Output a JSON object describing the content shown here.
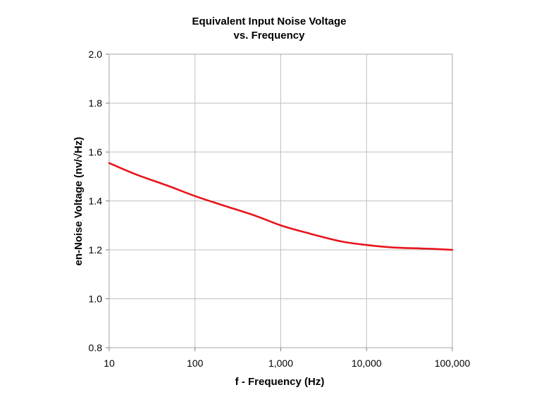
{
  "chart_data": {
    "type": "line",
    "title": "Equivalent Input Noise Voltage",
    "subtitle": "vs. Frequency",
    "xlabel": "f - Frequency (Hz)",
    "ylabel": "en-Noise Voltage (nv/√Hz)",
    "x_scale": "log",
    "xlim": [
      10,
      100000
    ],
    "ylim": [
      0.8,
      2.0
    ],
    "x_ticks": [
      10,
      100,
      1000,
      10000,
      100000
    ],
    "x_tick_labels": [
      "10",
      "100",
      "1,000",
      "10,000",
      "100,000"
    ],
    "y_ticks": [
      0.8,
      1.0,
      1.2,
      1.4,
      1.6,
      1.8,
      2.0
    ],
    "y_tick_labels": [
      "0.8",
      "1.0",
      "1.2",
      "1.4",
      "1.6",
      "1.8",
      "2.0"
    ],
    "grid": true,
    "legend": "none",
    "series": [
      {
        "color": "#e8141b",
        "x": [
          10,
          20,
          50,
          100,
          200,
          500,
          1000,
          2000,
          5000,
          10000,
          20000,
          50000,
          100000
        ],
        "y": [
          1.555,
          1.51,
          1.46,
          1.42,
          1.385,
          1.34,
          1.3,
          1.27,
          1.235,
          1.22,
          1.21,
          1.205,
          1.2
        ]
      }
    ]
  }
}
